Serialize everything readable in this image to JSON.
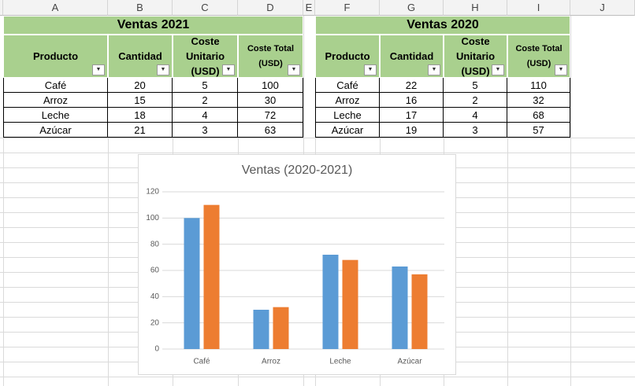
{
  "columns": [
    "A",
    "B",
    "C",
    "D",
    "E",
    "F",
    "G",
    "H",
    "I",
    "J"
  ],
  "tables": [
    {
      "title": "Ventas 2021",
      "headers": [
        "Producto",
        "Cantidad",
        "Coste Unitario (USD)",
        "Coste Total (USD)"
      ],
      "rows": [
        [
          "Café",
          "20",
          "5",
          "100"
        ],
        [
          "Arroz",
          "15",
          "2",
          "30"
        ],
        [
          "Leche",
          "18",
          "4",
          "72"
        ],
        [
          "Azúcar",
          "21",
          "3",
          "63"
        ]
      ]
    },
    {
      "title": "Ventas 2020",
      "headers": [
        "Producto",
        "Cantidad",
        "Coste Unitario (USD)",
        "Coste Total (USD)"
      ],
      "rows": [
        [
          "Café",
          "22",
          "5",
          "110"
        ],
        [
          "Arroz",
          "16",
          "2",
          "32"
        ],
        [
          "Leche",
          "17",
          "4",
          "68"
        ],
        [
          "Azúcar",
          "19",
          "3",
          "57"
        ]
      ]
    }
  ],
  "chart_data": {
    "type": "bar",
    "title": "Ventas (2020-2021)",
    "categories": [
      "Café",
      "Arroz",
      "Leche",
      "Azúcar"
    ],
    "series": [
      {
        "color": "#5b9bd5",
        "values": [
          100,
          30,
          72,
          63
        ]
      },
      {
        "color": "#ed7d31",
        "values": [
          110,
          32,
          68,
          57
        ]
      }
    ],
    "ylim": [
      0,
      120
    ],
    "yticks": [
      0,
      20,
      40,
      60,
      80,
      100,
      120
    ],
    "grid": true
  }
}
